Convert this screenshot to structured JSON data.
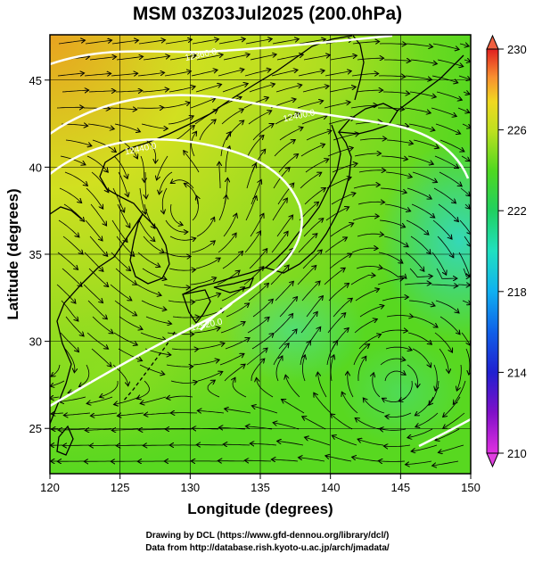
{
  "title": "MSM 03Z03Jul2025 (200.0hPa)",
  "x_axis": {
    "label": "Longitude (degrees)",
    "range": [
      120,
      150
    ],
    "ticks": [
      {
        "value": 120,
        "label": "120"
      },
      {
        "value": 125,
        "label": "125"
      },
      {
        "value": 130,
        "label": "130"
      },
      {
        "value": 135,
        "label": "135"
      },
      {
        "value": 140,
        "label": "140"
      },
      {
        "value": 145,
        "label": "145"
      },
      {
        "value": 150,
        "label": "150"
      }
    ]
  },
  "y_axis": {
    "label": "Latitude  (degrees)",
    "range": [
      22.4,
      47.6
    ],
    "ticks": [
      {
        "value": 25,
        "label": "25"
      },
      {
        "value": 30,
        "label": "30"
      },
      {
        "value": 35,
        "label": "35"
      },
      {
        "value": 40,
        "label": "40"
      },
      {
        "value": 45,
        "label": "45"
      }
    ]
  },
  "colorbar": {
    "min": 210,
    "max": 230,
    "labels": [
      {
        "value": 230,
        "label": "230"
      },
      {
        "value": 226,
        "label": "226"
      },
      {
        "value": 222,
        "label": "222"
      },
      {
        "value": 218,
        "label": "218"
      },
      {
        "value": 214,
        "label": "214"
      },
      {
        "value": 210,
        "label": "210"
      }
    ],
    "colors": [
      "#e030e0",
      "#8010c8",
      "#2020d0",
      "#1060e8",
      "#10b0f0",
      "#20e0c0",
      "#20d060",
      "#40d020",
      "#a0e020",
      "#e8e020",
      "#f8a020",
      "#f06040",
      "#e02020"
    ]
  },
  "contours": [
    {
      "label": "12360.0",
      "lon": 130.8,
      "lat": 46.3
    },
    {
      "label": "12400.0",
      "lon": 137.8,
      "lat": 42.8
    },
    {
      "label": "12440.0",
      "lon": 126.5,
      "lat": 40.9
    },
    {
      "label": "12520.0",
      "lon": 131.2,
      "lat": 30.8
    }
  ],
  "credits": {
    "line1": "Drawing by DCL (https://www.gfd-dennou.org/library/dcl/)",
    "line2": "Data from http://database.rish.kyoto-u.ac.jp/arch/jmadata/"
  }
}
